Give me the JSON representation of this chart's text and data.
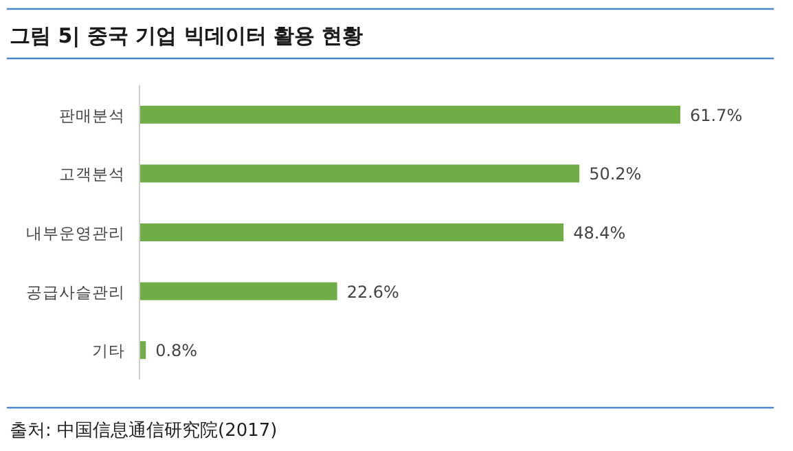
{
  "chart_data": {
    "type": "bar",
    "orientation": "horizontal",
    "title": "그림 5| 중국 기업 빅데이터 활용 현황",
    "categories": [
      "판매분석",
      "고객분석",
      "내부운영관리",
      "공급사슬관리",
      "기타"
    ],
    "values": [
      61.7,
      50.2,
      48.4,
      22.6,
      0.8
    ],
    "value_labels": [
      "61.7%",
      "50.2%",
      "48.4%",
      "22.6%",
      "0.8%"
    ],
    "color": "#70ad47",
    "annotations": [
      "출처: 中国信息通信研究院(2017)"
    ]
  }
}
